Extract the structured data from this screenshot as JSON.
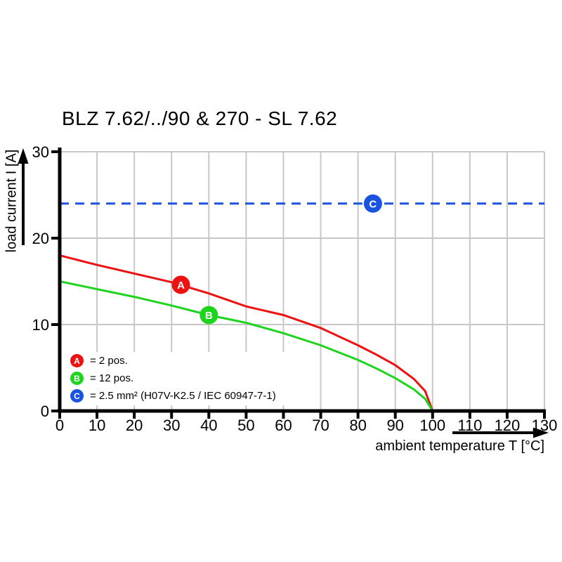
{
  "chart_data": {
    "type": "line",
    "title": "BLZ 7.62/../90 & 270 - SL 7.62",
    "xlabel": "ambient temperature T [°C]",
    "ylabel": "load current I [A]",
    "xlim": [
      0,
      130
    ],
    "ylim": [
      0,
      30
    ],
    "x_ticks": [
      0,
      10,
      20,
      30,
      40,
      50,
      60,
      70,
      80,
      90,
      100,
      110,
      120,
      130
    ],
    "y_ticks": [
      0,
      10,
      20,
      30
    ],
    "grid": true,
    "legend_position": "inside lower-left",
    "series": [
      {
        "name": "A",
        "label": "2 pos.",
        "color": "#ee1111",
        "style": "solid",
        "points": [
          [
            0,
            18.0
          ],
          [
            10,
            16.9
          ],
          [
            20,
            15.9
          ],
          [
            30,
            14.9
          ],
          [
            40,
            13.6
          ],
          [
            50,
            12.1
          ],
          [
            60,
            11.1
          ],
          [
            70,
            9.6
          ],
          [
            80,
            7.6
          ],
          [
            85,
            6.5
          ],
          [
            90,
            5.3
          ],
          [
            95,
            3.7
          ],
          [
            98,
            2.3
          ],
          [
            100,
            0
          ]
        ]
      },
      {
        "name": "B",
        "label": "12 pos.",
        "color": "#1fd41f",
        "style": "solid",
        "points": [
          [
            0,
            15.0
          ],
          [
            10,
            14.1
          ],
          [
            20,
            13.2
          ],
          [
            30,
            12.2
          ],
          [
            40,
            11.1
          ],
          [
            50,
            10.2
          ],
          [
            60,
            9.0
          ],
          [
            70,
            7.6
          ],
          [
            80,
            5.9
          ],
          [
            85,
            4.9
          ],
          [
            90,
            3.8
          ],
          [
            95,
            2.5
          ],
          [
            98,
            1.4
          ],
          [
            100,
            0
          ]
        ]
      },
      {
        "name": "C",
        "label": "2.5 mm² (H07V-K2.5 / IEC 60947-7-1)",
        "color": "#1a53e0",
        "style": "dashed",
        "points": [
          [
            0,
            24
          ],
          [
            130,
            24
          ]
        ]
      }
    ],
    "markers": [
      {
        "letter": "A",
        "x": 32.5,
        "y": 14.6
      },
      {
        "letter": "B",
        "x": 40,
        "y": 11.1
      },
      {
        "letter": "C",
        "x": 84,
        "y": 24
      }
    ]
  },
  "legend": {
    "items": [
      {
        "letter": "A",
        "text": "= 2 pos.",
        "color": "#ee1111"
      },
      {
        "letter": "B",
        "text": "= 12 pos.",
        "color": "#1fd41f"
      },
      {
        "letter": "C",
        "text": "= 2.5 mm² (H07V-K2.5 / IEC 60947-7-1)",
        "color": "#1a53e0"
      }
    ]
  },
  "colors": {
    "grid": "#c8c8c8",
    "axis": "#000000",
    "background": "#ffffff",
    "marker_letter": "#ffffff"
  }
}
